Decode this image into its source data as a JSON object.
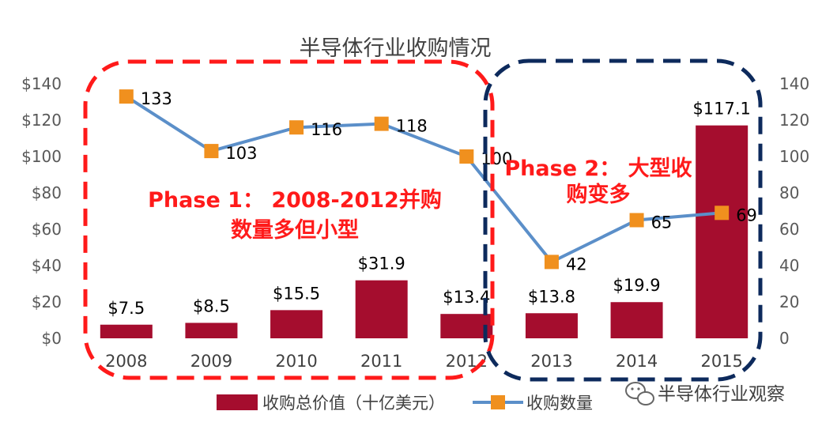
{
  "chart_data": {
    "type": "bar",
    "title": "半导体行业收购情况",
    "categories": [
      "2008",
      "2009",
      "2010",
      "2011",
      "2012",
      "2013",
      "2014",
      "2015"
    ],
    "series": [
      {
        "name": "收购总价值（十亿美元）",
        "kind": "bar",
        "axis": "left",
        "values": [
          7.5,
          8.5,
          15.5,
          31.9,
          13.4,
          13.8,
          19.9,
          117.1
        ],
        "labels": [
          "$7.5",
          "$8.5",
          "$15.5",
          "$31.9",
          "$13.4",
          "$13.8",
          "$19.9",
          "$117.1"
        ]
      },
      {
        "name": "收购数量",
        "kind": "line",
        "axis": "right",
        "values": [
          133,
          103,
          116,
          118,
          100,
          42,
          65,
          69
        ],
        "labels": [
          "133",
          "103",
          "116",
          "118",
          "100",
          "42",
          "65",
          "69"
        ]
      }
    ],
    "y_left": {
      "ylim": [
        0,
        140
      ],
      "ticks": [
        "$0",
        "$20",
        "$40",
        "$60",
        "$80",
        "$100",
        "$120",
        "$140"
      ]
    },
    "y_right": {
      "ylim": [
        0,
        140
      ],
      "ticks": [
        "0",
        "20",
        "40",
        "60",
        "80",
        "100",
        "120",
        "140"
      ]
    },
    "legend_position": "bottom",
    "annotations": {
      "phase1_line1": "Phase 1： 2008-2012并购",
      "phase1_line2": "数量多但小型",
      "phase2_line1": "Phase 2： 大型收",
      "phase2_line2": "购变多"
    },
    "colors": {
      "bar": "#a50d2e",
      "line": "#5b8fc9",
      "marker": "#f0901e",
      "phase1_box": "#ff1a1a",
      "phase2_box": "#0d2a5c"
    }
  },
  "watermark": "半导体行业观察",
  "icons": {
    "watermark_icon": "wechat-icon"
  }
}
